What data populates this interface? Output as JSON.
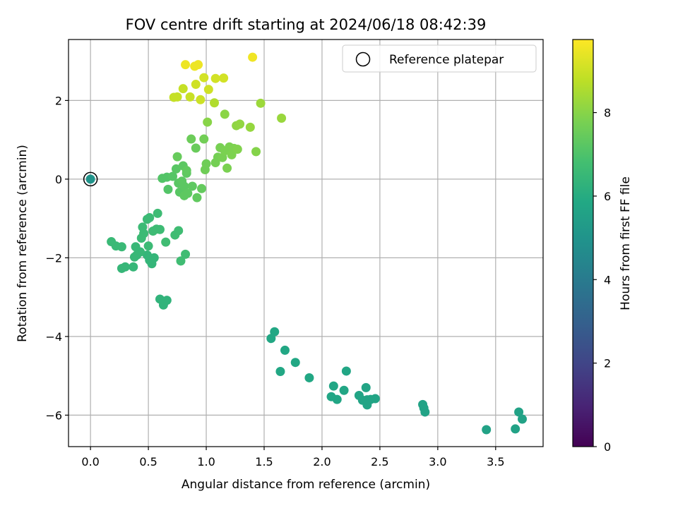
{
  "chart_data": {
    "type": "scatter",
    "title": "FOV centre drift starting at 2024/06/18 08:42:39",
    "xlabel": "Angular distance from reference (arcmin)",
    "ylabel": "Rotation from reference (arcmin)",
    "xlim": [
      -0.19,
      3.91
    ],
    "ylim": [
      -6.8,
      3.55
    ],
    "xticks": [
      0.0,
      0.5,
      1.0,
      1.5,
      2.0,
      2.5,
      3.0,
      3.5
    ],
    "xtick_labels": [
      "0.0",
      "0.5",
      "1.0",
      "1.5",
      "2.0",
      "2.5",
      "3.0",
      "3.5"
    ],
    "yticks": [
      -6,
      -4,
      -2,
      0,
      2
    ],
    "ytick_labels": [
      "−6",
      "−4",
      "−2",
      "0",
      "2"
    ],
    "grid": true,
    "colormap": "viridis",
    "colorbar": {
      "label": "Hours from first FF file",
      "range": [
        0,
        9.75
      ],
      "ticks": [
        0,
        2,
        4,
        6,
        8
      ],
      "tick_labels": [
        "0",
        "2",
        "4",
        "6",
        "8"
      ]
    },
    "legend": {
      "position": "top-right",
      "entries": [
        "Reference platepar"
      ]
    },
    "reference_point": {
      "x": 0.0,
      "y": 0.0,
      "hours": 5.0
    },
    "points": [
      [
        3.73,
        -6.1,
        5.6
      ],
      [
        3.7,
        -5.92,
        5.6
      ],
      [
        3.67,
        -6.35,
        5.6
      ],
      [
        3.42,
        -6.37,
        5.6
      ],
      [
        2.89,
        -5.92,
        5.65
      ],
      [
        2.88,
        -5.82,
        5.65
      ],
      [
        2.87,
        -5.73,
        5.65
      ],
      [
        2.46,
        -5.58,
        5.7
      ],
      [
        2.42,
        -5.6,
        5.7
      ],
      [
        2.39,
        -5.74,
        5.7
      ],
      [
        2.39,
        -5.61,
        5.7
      ],
      [
        2.38,
        -5.3,
        5.7
      ],
      [
        2.35,
        -5.62,
        5.7
      ],
      [
        2.32,
        -5.5,
        5.7
      ],
      [
        2.21,
        -4.88,
        5.75
      ],
      [
        2.19,
        -5.37,
        5.75
      ],
      [
        2.13,
        -5.6,
        5.75
      ],
      [
        2.1,
        -5.26,
        5.75
      ],
      [
        2.08,
        -5.53,
        5.75
      ],
      [
        1.89,
        -5.05,
        5.8
      ],
      [
        1.77,
        -4.66,
        5.8
      ],
      [
        1.68,
        -4.35,
        5.8
      ],
      [
        1.64,
        -4.89,
        5.8
      ],
      [
        1.59,
        -3.88,
        5.8
      ],
      [
        1.56,
        -4.05,
        5.8
      ],
      [
        0.0,
        0.0,
        5.0
      ],
      [
        0.66,
        -3.08,
        6.3
      ],
      [
        0.63,
        -3.2,
        6.3
      ],
      [
        0.6,
        -3.05,
        6.3
      ],
      [
        0.55,
        -2.0,
        6.4
      ],
      [
        0.53,
        -2.15,
        6.4
      ],
      [
        0.51,
        -2.06,
        6.4
      ],
      [
        0.49,
        -1.93,
        6.4
      ],
      [
        0.37,
        -2.23,
        6.45
      ],
      [
        0.3,
        -2.23,
        6.45
      ],
      [
        0.27,
        -2.27,
        6.45
      ],
      [
        0.38,
        -1.98,
        6.5
      ],
      [
        0.4,
        -1.93,
        6.5
      ],
      [
        0.43,
        -1.85,
        6.5
      ],
      [
        0.39,
        -1.72,
        6.5
      ],
      [
        0.27,
        -1.72,
        6.55
      ],
      [
        0.22,
        -1.7,
        6.55
      ],
      [
        0.18,
        -1.59,
        6.55
      ],
      [
        0.5,
        -1.7,
        6.6
      ],
      [
        0.44,
        -1.5,
        6.6
      ],
      [
        0.46,
        -1.38,
        6.6
      ],
      [
        0.45,
        -1.22,
        6.6
      ],
      [
        0.49,
        -1.02,
        6.6
      ],
      [
        0.51,
        -0.98,
        6.6
      ],
      [
        0.54,
        -1.32,
        6.65
      ],
      [
        0.57,
        -1.27,
        6.65
      ],
      [
        0.6,
        -1.28,
        6.65
      ],
      [
        0.58,
        -0.87,
        6.65
      ],
      [
        0.65,
        -1.6,
        6.7
      ],
      [
        0.73,
        -1.42,
        6.7
      ],
      [
        0.76,
        -1.31,
        6.7
      ],
      [
        0.82,
        -1.91,
        6.7
      ],
      [
        0.78,
        -2.08,
        6.7
      ],
      [
        0.62,
        0.02,
        7.1
      ],
      [
        0.66,
        0.05,
        7.1
      ],
      [
        0.67,
        -0.26,
        7.1
      ],
      [
        0.71,
        0.07,
        7.15
      ],
      [
        0.74,
        0.26,
        7.2
      ],
      [
        0.76,
        -0.1,
        7.2
      ],
      [
        0.77,
        -0.33,
        7.2
      ],
      [
        0.79,
        -0.05,
        7.25
      ],
      [
        0.8,
        0.34,
        7.25
      ],
      [
        0.81,
        -0.18,
        7.25
      ],
      [
        0.81,
        -0.42,
        7.3
      ],
      [
        0.83,
        0.15,
        7.3
      ],
      [
        0.84,
        -0.36,
        7.3
      ],
      [
        0.88,
        -0.18,
        7.3
      ],
      [
        0.83,
        0.22,
        7.35
      ],
      [
        0.92,
        -0.47,
        7.35
      ],
      [
        0.96,
        -0.24,
        7.4
      ],
      [
        0.75,
        0.57,
        7.45
      ],
      [
        0.91,
        0.79,
        7.5
      ],
      [
        0.87,
        1.02,
        7.55
      ],
      [
        0.99,
        0.24,
        7.6
      ],
      [
        1.0,
        0.39,
        7.6
      ],
      [
        0.98,
        1.02,
        7.65
      ],
      [
        1.08,
        0.42,
        7.7
      ],
      [
        1.1,
        0.56,
        7.7
      ],
      [
        1.12,
        0.8,
        7.75
      ],
      [
        1.14,
        0.55,
        7.75
      ],
      [
        1.16,
        0.72,
        7.8
      ],
      [
        1.18,
        0.28,
        7.8
      ],
      [
        1.2,
        0.82,
        7.8
      ],
      [
        1.22,
        0.62,
        7.85
      ],
      [
        1.24,
        0.78,
        7.85
      ],
      [
        1.27,
        0.76,
        7.9
      ],
      [
        1.43,
        0.7,
        7.95
      ],
      [
        1.01,
        1.45,
        8.0
      ],
      [
        1.16,
        1.65,
        8.05
      ],
      [
        1.26,
        1.36,
        8.1
      ],
      [
        1.29,
        1.4,
        8.15
      ],
      [
        1.38,
        1.32,
        8.2
      ],
      [
        1.47,
        1.93,
        8.3
      ],
      [
        1.65,
        1.55,
        8.25
      ],
      [
        1.07,
        1.94,
        8.6
      ],
      [
        0.72,
        2.08,
        8.9
      ],
      [
        0.75,
        2.09,
        8.9
      ],
      [
        0.8,
        2.3,
        8.9
      ],
      [
        0.86,
        2.09,
        8.95
      ],
      [
        0.95,
        2.02,
        9.0
      ],
      [
        0.91,
        2.41,
        9.05
      ],
      [
        1.02,
        2.28,
        9.05
      ],
      [
        0.98,
        2.58,
        9.1
      ],
      [
        1.08,
        2.56,
        9.1
      ],
      [
        1.15,
        2.57,
        9.1
      ],
      [
        0.82,
        2.91,
        9.5
      ],
      [
        0.9,
        2.87,
        9.5
      ],
      [
        0.93,
        2.91,
        9.5
      ],
      [
        1.4,
        3.1,
        9.55
      ]
    ]
  }
}
